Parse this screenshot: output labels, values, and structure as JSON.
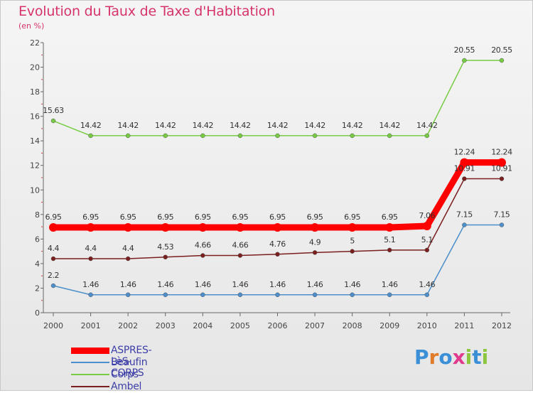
{
  "title": "Evolution du Taux de Taxe d'Habitation",
  "subtitle": "(en %)",
  "logo_text": "Proxiti",
  "chart_data": {
    "type": "line",
    "title": "Evolution du Taux de Taxe d'Habitation",
    "ylabel": "(en %)",
    "xlabel": "",
    "ylim": [
      0,
      22
    ],
    "yticks": [
      0,
      2,
      4,
      6,
      8,
      10,
      12,
      14,
      16,
      18,
      20,
      22
    ],
    "grid": false,
    "legend_position": "bottom-left",
    "x": [
      "2000",
      "2001",
      "2002",
      "2003",
      "2004",
      "2005",
      "2006",
      "2007",
      "2008",
      "2009",
      "2010",
      "2011",
      "2012"
    ],
    "series": [
      {
        "name": "ASPRES-LèS-CORPS",
        "color": "#ff0000",
        "values": [
          6.95,
          6.95,
          6.95,
          6.95,
          6.95,
          6.95,
          6.95,
          6.95,
          6.95,
          6.95,
          7.06,
          12.24,
          12.24
        ],
        "labels": [
          "6.95",
          "6.95",
          "6.95",
          "6.95",
          "6.95",
          "6.95",
          "6.95",
          "6.95",
          "6.95",
          "6.95",
          "7.06",
          "12.24",
          "12.24"
        ]
      },
      {
        "name": "Beaufin",
        "color": "#4d8fcc",
        "values": [
          2.2,
          1.46,
          1.46,
          1.46,
          1.46,
          1.46,
          1.46,
          1.46,
          1.46,
          1.46,
          1.46,
          7.15,
          7.15
        ],
        "labels": [
          "2.2",
          "1.46",
          "1.46",
          "1.46",
          "1.46",
          "1.46",
          "1.46",
          "1.46",
          "1.46",
          "1.46",
          "1.46",
          "7.15",
          "7.15"
        ]
      },
      {
        "name": "Corps",
        "color": "#77cc44",
        "values": [
          15.63,
          14.42,
          14.42,
          14.42,
          14.42,
          14.42,
          14.42,
          14.42,
          14.42,
          14.42,
          14.42,
          20.55,
          20.55
        ],
        "labels": [
          "15.63",
          "14.42",
          "14.42",
          "14.42",
          "14.42",
          "14.42",
          "14.42",
          "14.42",
          "14.42",
          "14.42",
          "14.42",
          "20.55",
          "20.55"
        ]
      },
      {
        "name": "Ambel",
        "color": "#7a1e1e",
        "values": [
          4.4,
          4.4,
          4.4,
          4.53,
          4.66,
          4.66,
          4.76,
          4.9,
          5,
          5.1,
          5.1,
          10.91,
          10.91
        ],
        "labels": [
          "4.4",
          "4.4",
          "4.4",
          "4.53",
          "4.66",
          "4.66",
          "4.76",
          "4.9",
          "5",
          "5.1",
          "5.1",
          "10.91",
          "10.91"
        ]
      }
    ]
  }
}
